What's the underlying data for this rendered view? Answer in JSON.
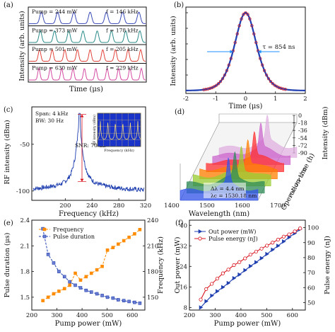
{
  "figure": {
    "panel_labels": [
      "(a)",
      "(b)",
      "(c)",
      "(d)",
      "(e)",
      "(f)"
    ],
    "colors": {
      "blue": "#1f3fb0",
      "red": "#d9141e",
      "orange": "#ff8c00",
      "pulse_a": [
        "#3b4bb8",
        "#2a8a8a",
        "#e2433a",
        "#d44aa0"
      ]
    }
  },
  "chart_data": [
    {
      "panel": "(a)",
      "type": "line",
      "xlabel": "Time (μs)",
      "ylabel": "Intensity (arb. units)",
      "traces": [
        {
          "pump": "Pump = 244 mW",
          "freq": "f = 146 kHz",
          "pulses": 7
        },
        {
          "pump": "Pump = 373 mW",
          "freq": "f = 178 kHz",
          "pulses": 8
        },
        {
          "pump": "Pump = 501 mW",
          "freq": "f = 205 kHz",
          "pulses": 9
        },
        {
          "pump": "Pump = 630 mW",
          "freq": "f = 229 kHz",
          "pulses": 10
        }
      ]
    },
    {
      "panel": "(b)",
      "type": "line",
      "xlabel": "Time (μs)",
      "ylabel": "Intensity (arb. units)",
      "xlim": [
        -2,
        2
      ],
      "ylim": [
        0,
        1.0
      ],
      "xticks": [
        "-2",
        "-1",
        "0",
        "1",
        "2"
      ],
      "yticks": [
        "0.0",
        "0.2",
        "0.4",
        "0.6",
        "0.8",
        "1.0"
      ],
      "annotation": "τ = 854 ns",
      "fwhm_us": 0.854
    },
    {
      "panel": "(c)",
      "type": "line",
      "xlabel": "Frequency (kHz)",
      "ylabel": "RF intensity (dBm)",
      "xlim": [
        150,
        320
      ],
      "ylim": [
        -110,
        -10
      ],
      "xticks": [
        "200",
        "240",
        "280",
        "320"
      ],
      "yticks": [
        "-50",
        "-100"
      ],
      "peak": {
        "x": 221,
        "y": -17
      },
      "noise_floor": -100,
      "annotations": [
        "Span: 4 kHz",
        "BW: 30 Hz",
        "SNR: 70 dB"
      ],
      "inset": {
        "xlabel": "Frequency (kHz)",
        "ylabel": "RF intensity (dBm)"
      }
    },
    {
      "panel": "(d)",
      "type": "area",
      "xlabel": "Wavelength (nm)",
      "ylabel": "Operation time (h)",
      "zlabel": "Intensity (dBm)",
      "xticks": [
        "1400",
        "1500",
        "1600",
        "1700"
      ],
      "zticks": [
        "0",
        "-18",
        "-36",
        "-54",
        "-72",
        "-90"
      ],
      "yticks": [
        "1",
        "2",
        "3",
        "4",
        "5",
        "6"
      ],
      "annotations": [
        "Δλ = 4.4 nm",
        "λc = 1530.18 nm"
      ],
      "colors": [
        "#3355ee",
        "#2e8b57",
        "#9acd32",
        "#ff7f00",
        "#ff3030",
        "#cc66cc",
        "#e0b0e0"
      ]
    },
    {
      "panel": "(e)",
      "type": "line",
      "xlabel": "Pump power (mW)",
      "ylabel": "Pulse duration (μs)",
      "y2label": "Frequency (kHz)",
      "xlim": [
        200,
        650
      ],
      "ylim": [
        1.35,
        2.4
      ],
      "y2lim": [
        135,
        240
      ],
      "xticks": [
        "200",
        "300",
        "400",
        "500",
        "600"
      ],
      "yticks": [
        "1.5",
        "1.8",
        "2.1",
        "2.4"
      ],
      "y2ticks": [
        "150",
        "180",
        "210",
        "240"
      ],
      "x": [
        244,
        265,
        287,
        308,
        330,
        351,
        373,
        394,
        416,
        437,
        459,
        480,
        501,
        523,
        544,
        566,
        587,
        609,
        630
      ],
      "series": [
        {
          "name": "Frequency",
          "axis": "right",
          "values": [
            146,
            150,
            154,
            157,
            160,
            164,
            178,
            170,
            174,
            178,
            182,
            186,
            205,
            208,
            212,
            216,
            220,
            224,
            229
          ]
        },
        {
          "name": "Pulse duration",
          "axis": "left",
          "values": [
            2.3,
            2.0,
            1.9,
            1.8,
            1.74,
            1.68,
            1.64,
            1.61,
            1.58,
            1.56,
            1.54,
            1.52,
            1.5,
            1.49,
            1.47,
            1.46,
            1.45,
            1.44,
            1.43
          ]
        }
      ]
    },
    {
      "panel": "(f)",
      "type": "line",
      "xlabel": "Pump power (mW)",
      "ylabel": "Out power (mW)",
      "y2label": "Pulse energy (nJ)",
      "xlim": [
        200,
        650
      ],
      "ylim": [
        7,
        42
      ],
      "y2lim": [
        45,
        105
      ],
      "xticks": [
        "200",
        "300",
        "400",
        "500",
        "600"
      ],
      "yticks": [
        "8",
        "16",
        "24",
        "32",
        "40"
      ],
      "y2ticks": [
        "50",
        "60",
        "70",
        "80",
        "90",
        "100"
      ],
      "x": [
        244,
        265,
        287,
        308,
        330,
        351,
        373,
        394,
        416,
        437,
        459,
        480,
        501,
        523,
        544,
        566,
        587,
        609,
        630
      ],
      "series": [
        {
          "name": "Out power (mW)",
          "axis": "left",
          "values": [
            8.0,
            10.4,
            12.6,
            14.3,
            15.9,
            17.5,
            19.4,
            20.8,
            22.5,
            24.1,
            25.6,
            27.2,
            28.8,
            30.5,
            32.0,
            33.7,
            35.3,
            36.9,
            38.5
          ]
        },
        {
          "name": "Pulse energy (nJ)",
          "axis": "right",
          "values": [
            52,
            59,
            62.5,
            66,
            69.5,
            72,
            75,
            77,
            79.5,
            82,
            84,
            86,
            88,
            90,
            92,
            94,
            95.5,
            97.5,
            99.5
          ]
        }
      ]
    }
  ]
}
